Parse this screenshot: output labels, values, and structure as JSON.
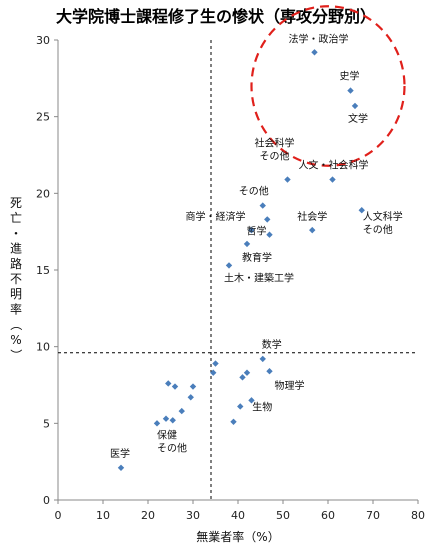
{
  "chart_data": {
    "type": "scatter",
    "title": "大学院博士課程修了生の惨状（専攻分野別）",
    "xlabel": "無業者率（%）",
    "ylabel": "死亡・進路不明率（%）",
    "xlim": [
      0,
      80
    ],
    "ylim": [
      0,
      30
    ],
    "xticks": [
      0,
      10,
      20,
      30,
      40,
      50,
      60,
      70,
      80
    ],
    "yticks": [
      0,
      5,
      10,
      15,
      20,
      25,
      30
    ],
    "grid": false,
    "legend": "none",
    "marker_color": "#4A7EBB",
    "reference_lines": {
      "x": 34,
      "y": 9.6,
      "style": "dashed",
      "color": "#000000"
    },
    "highlight_ellipse": {
      "cx": 60,
      "cy": 27,
      "rx": 17,
      "ry": 5.2,
      "color": "#E0201B",
      "style": "dashed"
    },
    "points": [
      {
        "x": 57,
        "y": 29.2,
        "label": "法学・政治学"
      },
      {
        "x": 65,
        "y": 26.7,
        "label": "史学"
      },
      {
        "x": 66,
        "y": 25.7,
        "label": "文学"
      },
      {
        "x": 51,
        "y": 20.9,
        "label": "社会科学その他"
      },
      {
        "x": 61,
        "y": 20.9,
        "label": "人文・社会科学"
      },
      {
        "x": 45.5,
        "y": 19.2,
        "label": "その他"
      },
      {
        "x": 67.5,
        "y": 18.9,
        "label": "人文科学その他"
      },
      {
        "x": 46.5,
        "y": 18.3,
        "label": ""
      },
      {
        "x": 43,
        "y": 17.6,
        "label": "商学・経済学"
      },
      {
        "x": 56.5,
        "y": 17.6,
        "label": "社会学"
      },
      {
        "x": 47,
        "y": 17.3,
        "label": "哲学"
      },
      {
        "x": 42,
        "y": 16.7,
        "label": "教育学"
      },
      {
        "x": 38,
        "y": 15.3,
        "label": "土木・建築工学"
      },
      {
        "x": 45.5,
        "y": 9.2,
        "label": "数学"
      },
      {
        "x": 35,
        "y": 8.9,
        "label": ""
      },
      {
        "x": 34.5,
        "y": 8.3,
        "label": ""
      },
      {
        "x": 41,
        "y": 8.0,
        "label": ""
      },
      {
        "x": 42,
        "y": 8.3,
        "label": ""
      },
      {
        "x": 47,
        "y": 8.4,
        "label": "物理学"
      },
      {
        "x": 24.5,
        "y": 7.6,
        "label": ""
      },
      {
        "x": 26,
        "y": 7.4,
        "label": ""
      },
      {
        "x": 30,
        "y": 7.4,
        "label": ""
      },
      {
        "x": 29.5,
        "y": 6.7,
        "label": ""
      },
      {
        "x": 43,
        "y": 6.5,
        "label": ""
      },
      {
        "x": 40.5,
        "y": 6.1,
        "label": "生物"
      },
      {
        "x": 27.5,
        "y": 5.8,
        "label": ""
      },
      {
        "x": 24,
        "y": 5.3,
        "label": ""
      },
      {
        "x": 25.5,
        "y": 5.2,
        "label": ""
      },
      {
        "x": 39,
        "y": 5.1,
        "label": ""
      },
      {
        "x": 22,
        "y": 5.0,
        "label": "保健その他"
      },
      {
        "x": 14,
        "y": 2.1,
        "label": "医学"
      }
    ]
  }
}
